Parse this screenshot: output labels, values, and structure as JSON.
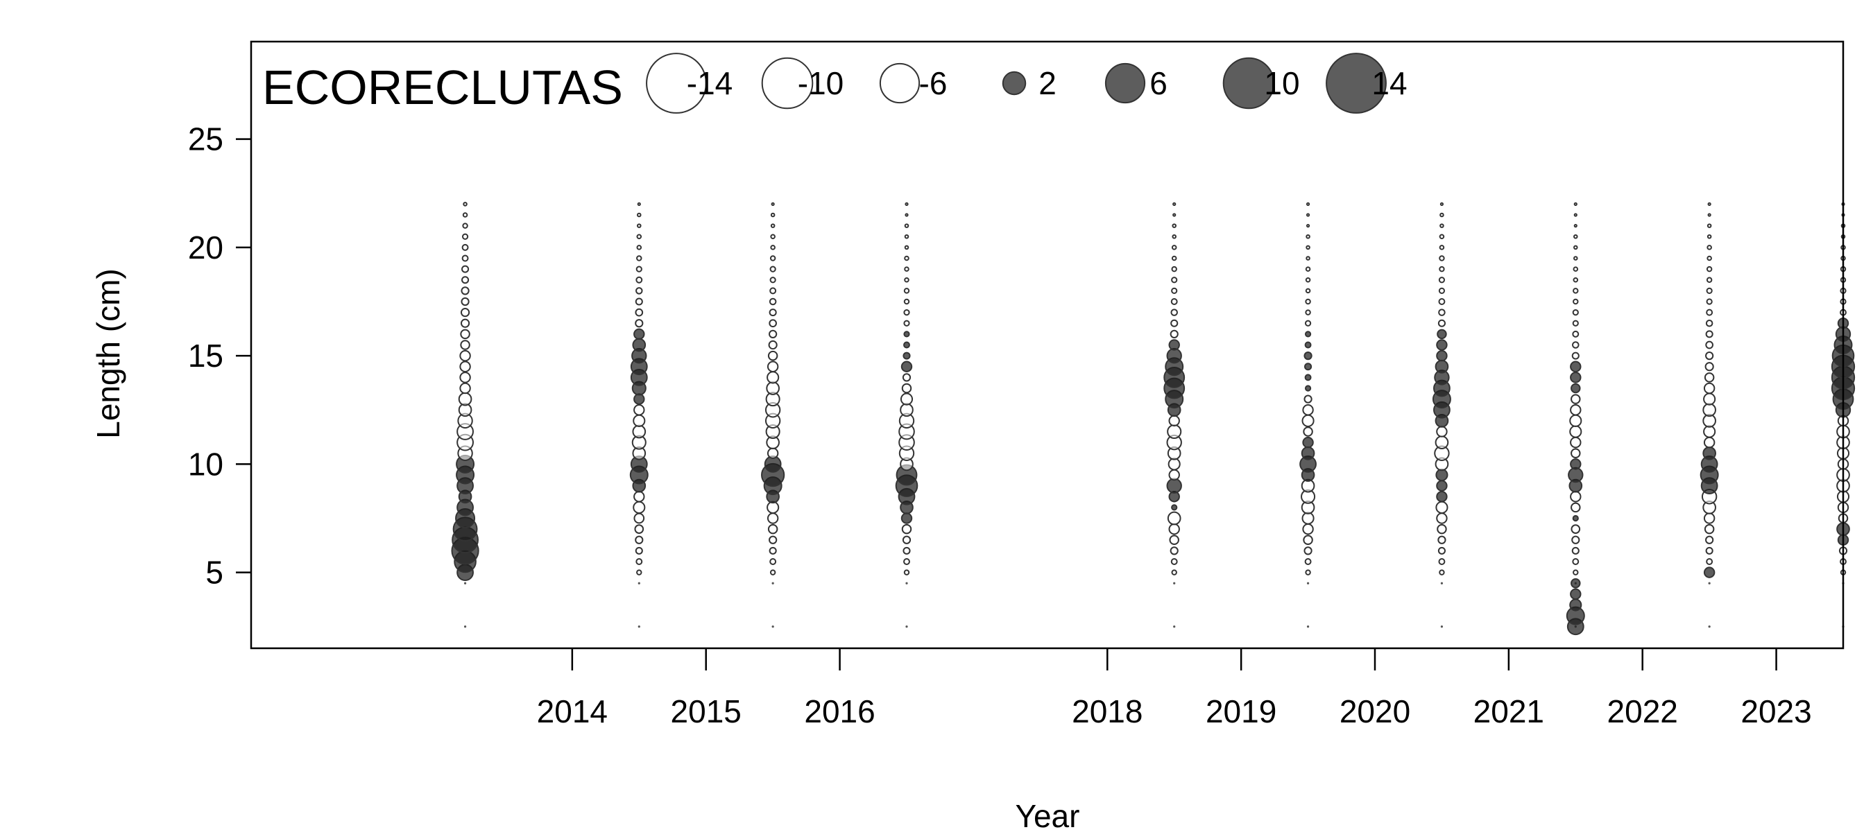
{
  "chart_data": {
    "type": "scatter",
    "subtype": "bubble",
    "title": "ECORECLUTAS",
    "xlabel": "Year",
    "ylabel": "Length (cm)",
    "x_ticks": [
      2014,
      2015,
      2016,
      2018,
      2019,
      2020,
      2021,
      2022,
      2023
    ],
    "x_tick_labels": [
      "2014",
      "2015",
      "2016",
      "2018",
      "2019",
      "2020",
      "2021",
      "2022",
      "2023"
    ],
    "y_ticks": [
      5,
      10,
      15,
      20,
      25
    ],
    "y_tick_labels": [
      "5",
      "10",
      "15",
      "20",
      "25"
    ],
    "xlim": [
      2011.6,
      2023.5
    ],
    "ylim": [
      1.5,
      29.5
    ],
    "grid": false,
    "legend": {
      "placement": "top",
      "values": [
        -14,
        -10,
        -6,
        2,
        6,
        10,
        14
      ],
      "labels": [
        "-14",
        "-10",
        "-6",
        "2",
        "6",
        "10",
        "14"
      ]
    },
    "colors": {
      "positive_fill": "#1f1f1f",
      "positive_fill_opacity": 0.72,
      "negative_fill": "#ffffff",
      "negative_fill_opacity": 0.55,
      "stroke": "#333333"
    },
    "dot_lengths": [
      2.5,
      4.5
    ],
    "lengths": [
      5.0,
      5.5,
      6.0,
      6.5,
      7.0,
      7.5,
      8.0,
      8.5,
      9.0,
      9.5,
      10.0,
      10.5,
      11.0,
      11.5,
      12.0,
      12.5,
      13.0,
      13.5,
      14.0,
      14.5,
      15.0,
      15.5,
      16.0,
      16.5,
      17.0,
      17.5,
      18.0,
      18.5,
      19.0,
      19.5,
      20.0,
      20.5,
      21.0,
      21.5,
      22.0
    ],
    "series": [
      {
        "x": 2013.2,
        "residuals": [
          5,
          9,
          14,
          13,
          11,
          7,
          5,
          3,
          5,
          6,
          6,
          -4,
          -5,
          -5,
          -4,
          -3,
          -3,
          -2,
          -2,
          -2,
          -2,
          -1.5,
          -1.5,
          -1.2,
          -1.2,
          -1,
          -1,
          -0.8,
          -0.8,
          -0.6,
          -0.6,
          -0.5,
          -0.4,
          -0.3,
          -0.2
        ]
      },
      {
        "x": 2014.5,
        "residuals": [
          -0.4,
          -0.6,
          -0.8,
          -1,
          -1.3,
          -1.8,
          -2.5,
          -2,
          3,
          6,
          5,
          -3,
          -3.5,
          -3,
          -2.5,
          -2,
          2,
          3.5,
          5,
          5,
          4,
          3,
          2,
          -1,
          -0.9,
          -0.8,
          -0.7,
          -0.6,
          -0.5,
          -0.4,
          -0.3,
          -0.3,
          -0.2,
          -0.2,
          -0.1
        ]
      },
      {
        "x": 2015.5,
        "residuals": [
          -0.4,
          -0.6,
          -0.8,
          -1,
          -1.5,
          -2,
          -2.5,
          3,
          6,
          10,
          5,
          -2,
          -3,
          -3.5,
          -4,
          -4,
          -3.5,
          -3,
          -2.5,
          -2,
          -1.5,
          -1.2,
          -1,
          -0.9,
          -0.8,
          -0.7,
          -0.6,
          -0.5,
          -0.5,
          -0.4,
          -0.3,
          -0.3,
          -0.2,
          -0.2,
          -0.1
        ]
      },
      {
        "x": 2016.5,
        "residuals": [
          -0.4,
          -0.6,
          -0.8,
          -1,
          -1.5,
          2,
          3,
          5,
          9,
          8,
          -3,
          -4,
          -4.5,
          -4.5,
          -4,
          -3,
          -2.5,
          -1.5,
          -1,
          2,
          0.8,
          0.6,
          0.5,
          -0.5,
          -0.5,
          -0.4,
          -0.4,
          -0.3,
          -0.3,
          -0.3,
          -0.2,
          -0.2,
          -0.2,
          -0.1,
          -0.1
        ]
      },
      {
        "x": 2018.5,
        "residuals": [
          -0.4,
          -0.6,
          -1,
          -1.5,
          -2,
          -3,
          0.5,
          2,
          4,
          -2,
          -2.5,
          -3,
          -4,
          -3.5,
          -2,
          3,
          6,
          8,
          8,
          6,
          4,
          2,
          -1,
          -0.8,
          -0.7,
          -0.6,
          -0.5,
          -0.5,
          -0.4,
          -0.3,
          -0.3,
          -0.2,
          -0.2,
          -0.1,
          -0.1
        ]
      },
      {
        "x": 2019.5,
        "residuals": [
          -0.4,
          -0.6,
          -1,
          -1.5,
          -2,
          -2.5,
          -3,
          -3.5,
          -3,
          3,
          5,
          3,
          2,
          -1.5,
          -2.5,
          -2,
          -1,
          0.5,
          0.6,
          0.8,
          1,
          0.6,
          0.5,
          -0.5,
          -0.4,
          -0.4,
          -0.3,
          -0.3,
          -0.3,
          -0.2,
          -0.2,
          -0.2,
          -0.1,
          -0.1,
          -0.1
        ]
      },
      {
        "x": 2020.5,
        "residuals": [
          -0.4,
          -0.6,
          -0.8,
          -1,
          -1.5,
          -2,
          -2.5,
          2,
          2,
          2.5,
          -3,
          -4,
          -3,
          -2,
          3,
          5,
          6,
          5,
          4,
          3,
          2,
          2,
          1.5,
          -0.8,
          -0.7,
          -0.6,
          -0.5,
          -0.5,
          -0.4,
          -0.4,
          -0.3,
          -0.3,
          -0.2,
          -0.2,
          -0.1
        ]
      },
      {
        "x": 2021.5,
        "residuals": [
          -0.4,
          -0.6,
          -0.8,
          -1,
          -1.3,
          0.5,
          -1.5,
          -2,
          3,
          4,
          2,
          -1.5,
          -2,
          -2.5,
          -2.5,
          -2,
          -1.5,
          1.5,
          2,
          2,
          -0.8,
          -0.7,
          -0.6,
          -0.5,
          -0.5,
          -0.4,
          -0.4,
          -0.3,
          -0.3,
          -0.2,
          -0.2,
          -0.2,
          -0.1,
          -0.1,
          -0.1
        ]
      },
      {
        "x": 2022.5,
        "residuals": [
          2,
          -0.6,
          -0.8,
          -1,
          -1.5,
          -2,
          -3,
          -4,
          5,
          6,
          5,
          3,
          -2,
          -2.5,
          -3,
          -3,
          -2.5,
          -2,
          -1.5,
          -1.2,
          -1,
          -0.9,
          -0.8,
          -0.7,
          -0.6,
          -0.5,
          -0.5,
          -0.4,
          -0.4,
          -0.3,
          -0.3,
          -0.2,
          -0.2,
          -0.1,
          -0.1
        ]
      },
      {
        "x": 2023.5,
        "residuals": [
          -0.4,
          -0.6,
          -1,
          2,
          3,
          -1.5,
          -2,
          -2.5,
          -3,
          -3,
          -2,
          -2.5,
          -3,
          -3,
          -2,
          4,
          8,
          10,
          10,
          10,
          9,
          6,
          4,
          2,
          -0.6,
          -0.5,
          -0.5,
          -0.4,
          -0.4,
          -0.3,
          -0.3,
          -0.2,
          -0.2,
          -0.1,
          -0.1
        ]
      }
    ],
    "extra_points": [
      {
        "x": 2021.5,
        "length": 2.5,
        "residual": 5
      },
      {
        "x": 2021.5,
        "length": 3.0,
        "residual": 6
      },
      {
        "x": 2021.5,
        "length": 3.5,
        "residual": 2.5
      },
      {
        "x": 2021.5,
        "length": 4.0,
        "residual": 2
      },
      {
        "x": 2021.5,
        "length": 4.5,
        "residual": 1.5
      }
    ]
  }
}
